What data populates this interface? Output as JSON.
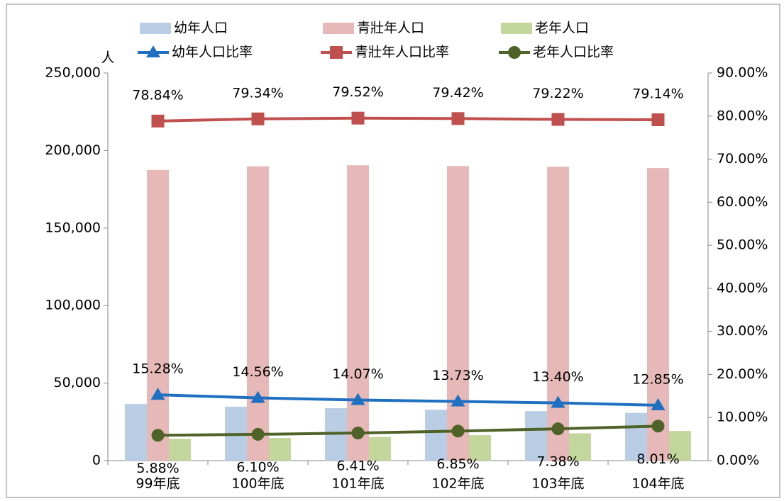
{
  "chart_data": {
    "type": "bar_line",
    "y_label": "人",
    "categories": [
      "99年底",
      "100年底",
      "101年底",
      "102年底",
      "103年底",
      "104年底"
    ],
    "series": [
      {
        "name": "幼年人口",
        "type": "bar",
        "color": "#b9cde5",
        "values": [
          36500,
          34800,
          33800,
          32800,
          31900,
          30800
        ]
      },
      {
        "name": "青壯年人口",
        "type": "bar",
        "color": "#e6b9b8",
        "values": [
          187500,
          189800,
          190500,
          190000,
          189500,
          188700
        ]
      },
      {
        "name": "老年人口",
        "type": "bar",
        "color": "#c3d69b",
        "values": [
          14100,
          14600,
          15300,
          16400,
          17600,
          19100
        ]
      },
      {
        "name": "幼年人口比率",
        "type": "line",
        "axis": "y2",
        "marker": "triangle",
        "color": "#1f70c1",
        "values": [
          15.28,
          14.56,
          14.07,
          13.73,
          13.4,
          12.85
        ],
        "value_labels": [
          "15.28%",
          "14.56%",
          "14.07%",
          "13.73%",
          "13.40%",
          "12.85%"
        ],
        "label_position": "above"
      },
      {
        "name": "青壯年人口比率",
        "type": "line",
        "axis": "y2",
        "marker": "square",
        "color": "#c0504d",
        "values": [
          78.84,
          79.34,
          79.52,
          79.42,
          79.22,
          79.14
        ],
        "value_labels": [
          "78.84%",
          "79.34%",
          "79.52%",
          "79.42%",
          "79.22%",
          "79.14%"
        ],
        "label_position": "above"
      },
      {
        "name": "老年人口比率",
        "type": "line",
        "axis": "y2",
        "marker": "circle",
        "color": "#4f6228",
        "values": [
          5.88,
          6.1,
          6.41,
          6.85,
          7.38,
          8.01
        ],
        "value_labels": [
          "5.88%",
          "6.10%",
          "6.41%",
          "6.85%",
          "7.38%",
          "8.01%"
        ],
        "label_position": "below"
      }
    ],
    "ylim": [
      0,
      250000
    ],
    "yticks": [
      0,
      {
        "value": 50000,
        "label": "50,000"
      },
      {
        "value": 100000,
        "label": "100,000"
      },
      {
        "value": 150000,
        "label": "150,000"
      },
      {
        "value": 200000,
        "label": "200,000"
      },
      {
        "value": 250000,
        "label": "250,000"
      }
    ],
    "y2lim": [
      0,
      90
    ],
    "y2ticks": [
      {
        "value": 0,
        "label": "0.00%"
      },
      {
        "value": 10,
        "label": "10.00%"
      },
      {
        "value": 20,
        "label": "20.00%"
      },
      {
        "value": 30,
        "label": "30.00%"
      },
      {
        "value": 40,
        "label": "40.00%"
      },
      {
        "value": 50,
        "label": "50.00%"
      },
      {
        "value": 60,
        "label": "60.00%"
      },
      {
        "value": 70,
        "label": "70.00%"
      },
      {
        "value": 80,
        "label": "80.00%"
      },
      {
        "value": 90,
        "label": "90.00%"
      }
    ],
    "legend": "top"
  }
}
